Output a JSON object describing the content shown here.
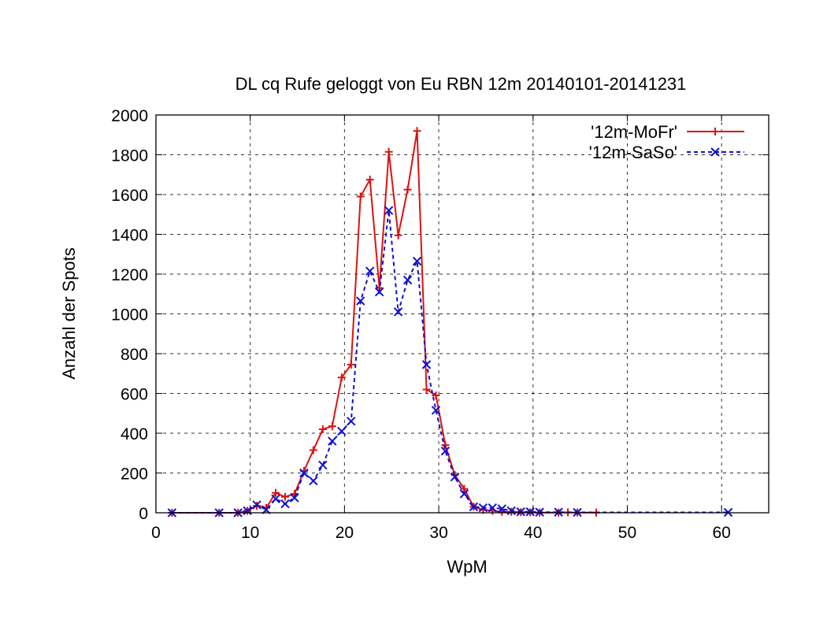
{
  "chart_data": {
    "type": "line",
    "title": "DL cq Rufe geloggt von Eu RBN 12m 20140101-20141231",
    "xlabel": "WpM",
    "ylabel": "Anzahl der Spots",
    "xlim": [
      0,
      65
    ],
    "ylim": [
      0,
      2000
    ],
    "xticks": [
      0,
      10,
      20,
      30,
      40,
      50,
      60
    ],
    "yticks": [
      0,
      200,
      400,
      600,
      800,
      1000,
      1200,
      1400,
      1600,
      1800,
      2000
    ],
    "grid": true,
    "legend_position": "top-right",
    "series": [
      {
        "name": "'12m-MoFr'",
        "color": "#dd1111",
        "marker": "plus",
        "dash": "solid",
        "x": [
          1.7,
          6.7,
          8.7,
          9.7,
          10.7,
          11.7,
          12.7,
          13.7,
          14.7,
          15.7,
          16.7,
          17.7,
          18.7,
          19.7,
          20.7,
          21.7,
          22.7,
          23.7,
          24.7,
          25.7,
          26.7,
          27.7,
          28.7,
          29.7,
          30.7,
          31.7,
          32.7,
          33.7,
          34.7,
          35.7,
          36.7,
          37.7,
          38.7,
          39.7,
          40.7,
          42.7,
          43.7,
          44.7,
          46.7
        ],
        "y": [
          0,
          0,
          0,
          10,
          35,
          25,
          100,
          80,
          95,
          210,
          315,
          420,
          435,
          680,
          745,
          1590,
          1675,
          1130,
          1815,
          1395,
          1625,
          1920,
          620,
          590,
          340,
          190,
          120,
          30,
          15,
          10,
          5,
          5,
          3,
          2,
          1,
          1,
          2,
          1,
          1
        ]
      },
      {
        "name": "'12m-SaSo'",
        "color": "#1111cc",
        "marker": "cross",
        "dash": "dashed",
        "x": [
          1.7,
          6.7,
          8.7,
          9.7,
          10.7,
          11.7,
          12.7,
          13.7,
          14.7,
          15.7,
          16.7,
          17.7,
          18.7,
          19.7,
          20.7,
          21.7,
          22.7,
          23.7,
          24.7,
          25.7,
          26.7,
          27.7,
          28.7,
          29.7,
          30.7,
          31.7,
          32.7,
          33.7,
          34.7,
          35.7,
          36.7,
          37.7,
          38.7,
          39.7,
          40.7,
          42.7,
          44.7,
          60.7
        ],
        "y": [
          0,
          0,
          0,
          10,
          40,
          15,
          70,
          45,
          75,
          200,
          160,
          240,
          360,
          410,
          460,
          1065,
          1215,
          1110,
          1520,
          1010,
          1170,
          1265,
          745,
          515,
          310,
          180,
          95,
          30,
          25,
          25,
          20,
          10,
          5,
          5,
          3,
          3,
          2,
          2
        ]
      }
    ]
  }
}
